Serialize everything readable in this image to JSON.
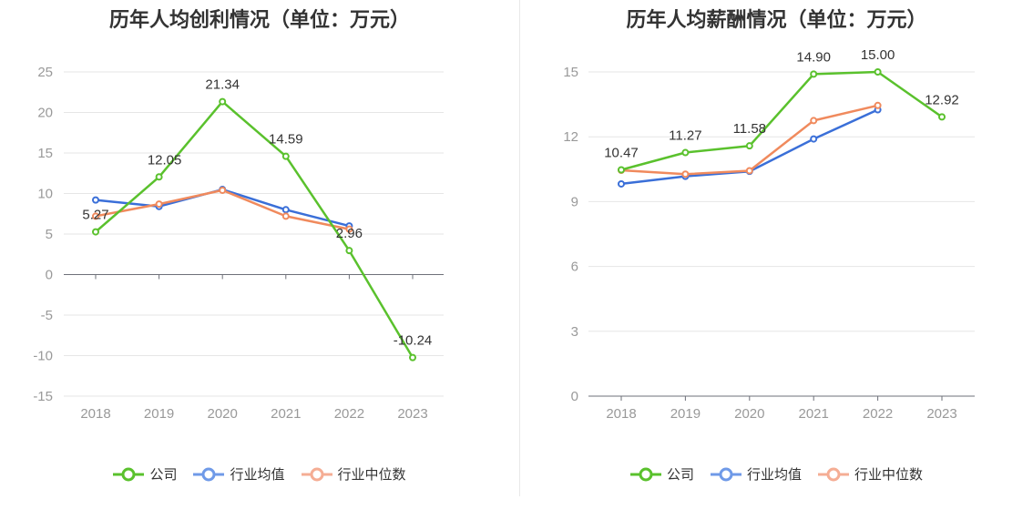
{
  "chart_data": [
    {
      "type": "line",
      "title": "历年人均创利情况（单位：万元）",
      "categories": [
        "2018",
        "2019",
        "2020",
        "2021",
        "2022",
        "2023"
      ],
      "ylim": [
        -15,
        25
      ],
      "yticks": [
        25,
        20,
        15,
        10,
        5,
        0,
        -5,
        -10,
        -15
      ],
      "grid": true,
      "legend_position": "bottom",
      "series": [
        {
          "name": "公司",
          "color": "#5ac12d",
          "values": [
            5.27,
            12.05,
            21.34,
            14.59,
            2.96,
            -10.24
          ],
          "labels": [
            "5.27",
            "12.05",
            "21.34",
            "14.59",
            "2.96",
            "-10.24"
          ]
        },
        {
          "name": "行业均值",
          "color": "#3a6fd8",
          "values": [
            9.2,
            8.4,
            10.5,
            8.0,
            6.0,
            null
          ]
        },
        {
          "name": "行业中位数",
          "color": "#f08a5d",
          "values": [
            7.2,
            8.7,
            10.4,
            7.2,
            5.6,
            null
          ]
        }
      ]
    },
    {
      "type": "line",
      "title": "历年人均薪酬情况（单位：万元）",
      "categories": [
        "2018",
        "2019",
        "2020",
        "2021",
        "2022",
        "2023"
      ],
      "ylim": [
        0,
        15
      ],
      "yticks": [
        15,
        12,
        9,
        6,
        3,
        0
      ],
      "grid": true,
      "legend_position": "bottom",
      "series": [
        {
          "name": "公司",
          "color": "#5ac12d",
          "values": [
            10.47,
            11.27,
            11.58,
            14.9,
            15.0,
            12.92
          ],
          "labels": [
            "10.47",
            "11.27",
            "11.58",
            "14.90",
            "15.00",
            "12.92"
          ]
        },
        {
          "name": "行业均值",
          "color": "#3a6fd8",
          "values": [
            9.82,
            10.17,
            10.4,
            11.9,
            13.25,
            null
          ]
        },
        {
          "name": "行业中位数",
          "color": "#f08a5d",
          "values": [
            10.45,
            10.27,
            10.43,
            12.75,
            13.45,
            null
          ]
        }
      ]
    }
  ],
  "legend": [
    {
      "label": "公司",
      "color": "#5ac12d"
    },
    {
      "label": "行业均值",
      "color": "#6f9ae8"
    },
    {
      "label": "行业中位数",
      "color": "#f5ad94"
    }
  ]
}
